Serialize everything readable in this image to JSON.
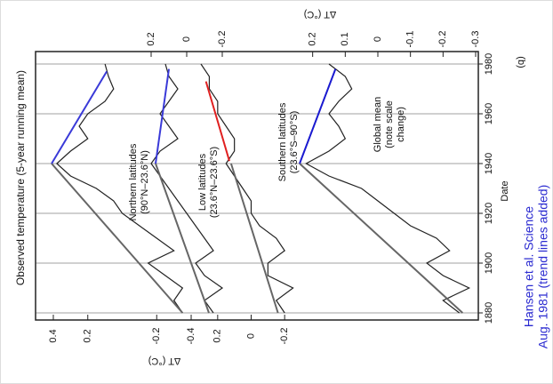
{
  "figure": {
    "title": "Observed temperature (5-year running mean)",
    "xlabel": "Date",
    "ylabel_left": "ΔT (°C)",
    "ylabel_right": "ΔT (°C)",
    "panel_label": "(b)",
    "caption": [
      "Hansen et al. Science",
      "Aug. 1981 (trend lines added)"
    ],
    "xlim": [
      1880,
      1980
    ],
    "xticks": [
      1880,
      1900,
      1920,
      1940,
      1960,
      1980
    ],
    "grid": true
  },
  "chart_data": [
    {
      "type": "line",
      "label": [
        "Northern latitudes",
        "(90°N–23.6°N)"
      ],
      "axis_side": "left",
      "ylim": [
        -0.5,
        0.5
      ],
      "yticks": [
        0.4,
        0.2,
        -0.2,
        -0.4
      ],
      "color": "#222",
      "x": [
        1880,
        1885,
        1890,
        1895,
        1900,
        1905,
        1910,
        1915,
        1920,
        1925,
        1930,
        1935,
        1940,
        1945,
        1950,
        1955,
        1960,
        1965,
        1970,
        1975,
        1980
      ],
      "values": [
        -0.35,
        -0.3,
        -0.35,
        -0.25,
        -0.15,
        -0.3,
        -0.2,
        -0.1,
        0.0,
        0.05,
        0.15,
        0.3,
        0.38,
        0.3,
        0.2,
        0.25,
        0.2,
        0.1,
        0.05,
        0.08,
        0.1
      ],
      "trend_lines": [
        {
          "color": "#666",
          "x": [
            1880,
            1940
          ],
          "values": [
            -0.35,
            0.41
          ]
        },
        {
          "color": "#3a3ad8",
          "x": [
            1940,
            1977
          ],
          "values": [
            0.41,
            0.09
          ]
        }
      ]
    },
    {
      "type": "line",
      "label": [
        "Low latitudes",
        "(23.6°N–23.6°S)"
      ],
      "axis_side": "right",
      "ylim": [
        -0.3,
        0.3
      ],
      "yticks": [
        0.2,
        0,
        -0.2
      ],
      "color": "#222",
      "x": [
        1880,
        1885,
        1890,
        1895,
        1900,
        1905,
        1910,
        1915,
        1920,
        1925,
        1930,
        1935,
        1940,
        1945,
        1950,
        1955,
        1960,
        1965,
        1970,
        1975,
        1980
      ],
      "values": [
        -0.15,
        -0.1,
        -0.2,
        -0.1,
        -0.05,
        -0.15,
        -0.1,
        -0.05,
        0,
        0.05,
        0.1,
        0.15,
        0.2,
        0.15,
        0.05,
        0.1,
        0.15,
        0.1,
        0.05,
        0.1,
        0.12
      ],
      "trend_lines": [
        {
          "color": "#666",
          "x": [
            1880,
            1940
          ],
          "values": [
            -0.125,
            0.175
          ]
        },
        {
          "color": "#3a3ad8",
          "x": [
            1940,
            1978
          ],
          "values": [
            0.175,
            0.1
          ]
        }
      ]
    },
    {
      "type": "line",
      "label": [
        "Southern latitudes",
        "(23.6°S–90°S)"
      ],
      "axis_side": "left",
      "ylim": [
        -0.3,
        0.3
      ],
      "yticks": [
        0.2,
        0,
        -0.2
      ],
      "color": "#222",
      "x": [
        1880,
        1885,
        1890,
        1895,
        1900,
        1905,
        1910,
        1915,
        1920,
        1925,
        1930,
        1935,
        1940,
        1945,
        1950,
        1955,
        1960,
        1965,
        1970,
        1975,
        1980
      ],
      "values": [
        -0.2,
        -0.15,
        -0.25,
        -0.1,
        -0.1,
        -0.2,
        -0.15,
        -0.05,
        0,
        0,
        0.05,
        0.1,
        0.15,
        0.1,
        0.1,
        0.15,
        0.2,
        0.2,
        0.25,
        0.25,
        0.3
      ],
      "trend_lines": [
        {
          "color": "#666",
          "x": [
            1880,
            1940
          ],
          "values": [
            -0.16,
            0.12
          ]
        },
        {
          "color": "#e02020",
          "x": [
            1941,
            1973
          ],
          "values": [
            0.13,
            0.27
          ]
        }
      ]
    },
    {
      "type": "line",
      "label": [
        "Global mean",
        "(note scale",
        "change)"
      ],
      "axis_side": "right",
      "ylim": [
        -0.3,
        0.3
      ],
      "yticks": [
        0.2,
        0.1,
        0,
        -0.1,
        -0.2,
        -0.3
      ],
      "color": "#222",
      "x": [
        1880,
        1885,
        1890,
        1895,
        1900,
        1905,
        1910,
        1915,
        1920,
        1925,
        1930,
        1935,
        1940,
        1945,
        1950,
        1955,
        1960,
        1965,
        1970,
        1975,
        1980
      ],
      "values": [
        -0.25,
        -0.2,
        -0.28,
        -0.2,
        -0.15,
        -0.22,
        -0.18,
        -0.1,
        -0.05,
        0,
        0.05,
        0.15,
        0.22,
        0.15,
        0.1,
        0.12,
        0.15,
        0.12,
        0.08,
        0.1,
        0.15
      ],
      "trend_lines": [
        {
          "color": "#666",
          "x": [
            1880,
            1940
          ],
          "values": [
            -0.26,
            0.24
          ]
        },
        {
          "color": "#1a1ad0",
          "x": [
            1940,
            1978
          ],
          "values": [
            0.24,
            0.13
          ]
        }
      ]
    }
  ]
}
